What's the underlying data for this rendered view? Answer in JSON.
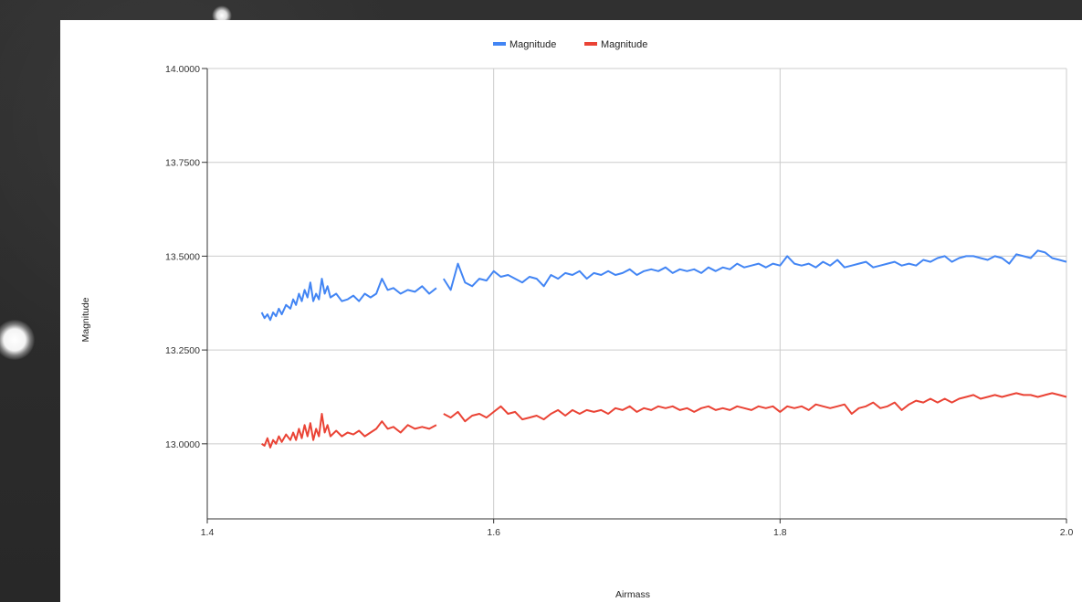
{
  "chart_data": {
    "type": "line",
    "title": "",
    "xlabel": "Airmass",
    "ylabel": "Magnitude",
    "xlim": [
      1.4,
      2.0
    ],
    "ylim": [
      12.8,
      14.0
    ],
    "x_ticks": [
      "1.4",
      "1.6",
      "1.8",
      "2.0"
    ],
    "y_ticks": [
      "14.0000",
      "13.7500",
      "13.5000",
      "13.2500",
      "13.0000"
    ],
    "grid": true,
    "legend_position": "top",
    "series": [
      {
        "name": "Magnitude",
        "color": "#4285f4",
        "segments": [
          [
            [
              1.438,
              13.35
            ],
            [
              1.44,
              13.335
            ],
            [
              1.442,
              13.345
            ],
            [
              1.444,
              13.33
            ],
            [
              1.446,
              13.35
            ],
            [
              1.448,
              13.34
            ],
            [
              1.45,
              13.36
            ],
            [
              1.452,
              13.345
            ],
            [
              1.455,
              13.37
            ],
            [
              1.458,
              13.36
            ],
            [
              1.46,
              13.385
            ],
            [
              1.462,
              13.37
            ],
            [
              1.464,
              13.4
            ],
            [
              1.466,
              13.38
            ],
            [
              1.468,
              13.41
            ],
            [
              1.47,
              13.39
            ],
            [
              1.472,
              13.43
            ],
            [
              1.474,
              13.38
            ],
            [
              1.476,
              13.4
            ],
            [
              1.478,
              13.385
            ],
            [
              1.48,
              13.44
            ],
            [
              1.482,
              13.4
            ],
            [
              1.484,
              13.42
            ],
            [
              1.486,
              13.39
            ],
            [
              1.49,
              13.4
            ],
            [
              1.494,
              13.38
            ],
            [
              1.498,
              13.385
            ],
            [
              1.502,
              13.395
            ],
            [
              1.506,
              13.38
            ],
            [
              1.51,
              13.4
            ],
            [
              1.514,
              13.39
            ],
            [
              1.518,
              13.4
            ],
            [
              1.522,
              13.44
            ],
            [
              1.526,
              13.41
            ],
            [
              1.53,
              13.415
            ],
            [
              1.535,
              13.4
            ],
            [
              1.54,
              13.41
            ],
            [
              1.545,
              13.405
            ],
            [
              1.55,
              13.42
            ],
            [
              1.555,
              13.4
            ],
            [
              1.56,
              13.415
            ]
          ],
          [
            [
              1.565,
              13.44
            ],
            [
              1.57,
              13.41
            ],
            [
              1.575,
              13.48
            ],
            [
              1.58,
              13.43
            ],
            [
              1.585,
              13.42
            ],
            [
              1.59,
              13.44
            ],
            [
              1.595,
              13.435
            ],
            [
              1.6,
              13.46
            ],
            [
              1.605,
              13.445
            ],
            [
              1.61,
              13.45
            ],
            [
              1.615,
              13.44
            ],
            [
              1.62,
              13.43
            ],
            [
              1.625,
              13.445
            ],
            [
              1.63,
              13.44
            ],
            [
              1.635,
              13.42
            ],
            [
              1.64,
              13.45
            ],
            [
              1.645,
              13.44
            ],
            [
              1.65,
              13.455
            ],
            [
              1.655,
              13.45
            ],
            [
              1.66,
              13.46
            ],
            [
              1.665,
              13.44
            ],
            [
              1.67,
              13.455
            ],
            [
              1.675,
              13.45
            ],
            [
              1.68,
              13.46
            ],
            [
              1.685,
              13.45
            ],
            [
              1.69,
              13.455
            ],
            [
              1.695,
              13.465
            ],
            [
              1.7,
              13.45
            ],
            [
              1.705,
              13.46
            ],
            [
              1.71,
              13.465
            ],
            [
              1.715,
              13.46
            ],
            [
              1.72,
              13.47
            ],
            [
              1.725,
              13.455
            ],
            [
              1.73,
              13.465
            ],
            [
              1.735,
              13.46
            ],
            [
              1.74,
              13.465
            ],
            [
              1.745,
              13.455
            ],
            [
              1.75,
              13.47
            ],
            [
              1.755,
              13.46
            ],
            [
              1.76,
              13.47
            ],
            [
              1.765,
              13.465
            ],
            [
              1.77,
              13.48
            ],
            [
              1.775,
              13.47
            ],
            [
              1.78,
              13.475
            ],
            [
              1.785,
              13.48
            ],
            [
              1.79,
              13.47
            ],
            [
              1.795,
              13.48
            ],
            [
              1.8,
              13.475
            ],
            [
              1.805,
              13.5
            ],
            [
              1.81,
              13.48
            ],
            [
              1.815,
              13.475
            ],
            [
              1.82,
              13.48
            ],
            [
              1.825,
              13.47
            ],
            [
              1.83,
              13.485
            ],
            [
              1.835,
              13.475
            ],
            [
              1.84,
              13.49
            ],
            [
              1.845,
              13.47
            ],
            [
              1.85,
              13.475
            ],
            [
              1.855,
              13.48
            ],
            [
              1.86,
              13.485
            ],
            [
              1.865,
              13.47
            ],
            [
              1.87,
              13.475
            ],
            [
              1.875,
              13.48
            ],
            [
              1.88,
              13.485
            ],
            [
              1.885,
              13.475
            ],
            [
              1.89,
              13.48
            ],
            [
              1.895,
              13.475
            ],
            [
              1.9,
              13.49
            ],
            [
              1.905,
              13.485
            ],
            [
              1.91,
              13.495
            ],
            [
              1.915,
              13.5
            ],
            [
              1.92,
              13.485
            ],
            [
              1.925,
              13.495
            ],
            [
              1.93,
              13.5
            ],
            [
              1.935,
              13.5
            ],
            [
              1.94,
              13.495
            ],
            [
              1.945,
              13.49
            ],
            [
              1.95,
              13.5
            ],
            [
              1.955,
              13.495
            ],
            [
              1.96,
              13.48
            ],
            [
              1.965,
              13.505
            ],
            [
              1.97,
              13.5
            ],
            [
              1.975,
              13.495
            ],
            [
              1.98,
              13.515
            ],
            [
              1.985,
              13.51
            ],
            [
              1.99,
              13.495
            ],
            [
              1.995,
              13.49
            ],
            [
              2.0,
              13.485
            ]
          ]
        ]
      },
      {
        "name": "Magnitude",
        "color": "#ea4335",
        "segments": [
          [
            [
              1.438,
              13.0
            ],
            [
              1.44,
              12.995
            ],
            [
              1.442,
              13.015
            ],
            [
              1.444,
              12.99
            ],
            [
              1.446,
              13.01
            ],
            [
              1.448,
              13.0
            ],
            [
              1.45,
              13.02
            ],
            [
              1.452,
              13.005
            ],
            [
              1.455,
              13.025
            ],
            [
              1.458,
              13.01
            ],
            [
              1.46,
              13.03
            ],
            [
              1.462,
              13.01
            ],
            [
              1.464,
              13.04
            ],
            [
              1.466,
              13.015
            ],
            [
              1.468,
              13.05
            ],
            [
              1.47,
              13.02
            ],
            [
              1.472,
              13.055
            ],
            [
              1.474,
              13.01
            ],
            [
              1.476,
              13.04
            ],
            [
              1.478,
              13.02
            ],
            [
              1.48,
              13.08
            ],
            [
              1.482,
              13.03
            ],
            [
              1.484,
              13.05
            ],
            [
              1.486,
              13.02
            ],
            [
              1.49,
              13.035
            ],
            [
              1.494,
              13.02
            ],
            [
              1.498,
              13.03
            ],
            [
              1.502,
              13.025
            ],
            [
              1.506,
              13.035
            ],
            [
              1.51,
              13.02
            ],
            [
              1.514,
              13.03
            ],
            [
              1.518,
              13.04
            ],
            [
              1.522,
              13.06
            ],
            [
              1.526,
              13.04
            ],
            [
              1.53,
              13.045
            ],
            [
              1.535,
              13.03
            ],
            [
              1.54,
              13.05
            ],
            [
              1.545,
              13.04
            ],
            [
              1.55,
              13.045
            ],
            [
              1.555,
              13.04
            ],
            [
              1.56,
              13.05
            ]
          ],
          [
            [
              1.565,
              13.08
            ],
            [
              1.57,
              13.07
            ],
            [
              1.575,
              13.085
            ],
            [
              1.58,
              13.06
            ],
            [
              1.585,
              13.075
            ],
            [
              1.59,
              13.08
            ],
            [
              1.595,
              13.07
            ],
            [
              1.6,
              13.085
            ],
            [
              1.605,
              13.1
            ],
            [
              1.61,
              13.08
            ],
            [
              1.615,
              13.085
            ],
            [
              1.62,
              13.065
            ],
            [
              1.625,
              13.07
            ],
            [
              1.63,
              13.075
            ],
            [
              1.635,
              13.065
            ],
            [
              1.64,
              13.08
            ],
            [
              1.645,
              13.09
            ],
            [
              1.65,
              13.075
            ],
            [
              1.655,
              13.09
            ],
            [
              1.66,
              13.08
            ],
            [
              1.665,
              13.09
            ],
            [
              1.67,
              13.085
            ],
            [
              1.675,
              13.09
            ],
            [
              1.68,
              13.08
            ],
            [
              1.685,
              13.095
            ],
            [
              1.69,
              13.09
            ],
            [
              1.695,
              13.1
            ],
            [
              1.7,
              13.085
            ],
            [
              1.705,
              13.095
            ],
            [
              1.71,
              13.09
            ],
            [
              1.715,
              13.1
            ],
            [
              1.72,
              13.095
            ],
            [
              1.725,
              13.1
            ],
            [
              1.73,
              13.09
            ],
            [
              1.735,
              13.095
            ],
            [
              1.74,
              13.085
            ],
            [
              1.745,
              13.095
            ],
            [
              1.75,
              13.1
            ],
            [
              1.755,
              13.09
            ],
            [
              1.76,
              13.095
            ],
            [
              1.765,
              13.09
            ],
            [
              1.77,
              13.1
            ],
            [
              1.775,
              13.095
            ],
            [
              1.78,
              13.09
            ],
            [
              1.785,
              13.1
            ],
            [
              1.79,
              13.095
            ],
            [
              1.795,
              13.1
            ],
            [
              1.8,
              13.085
            ],
            [
              1.805,
              13.1
            ],
            [
              1.81,
              13.095
            ],
            [
              1.815,
              13.1
            ],
            [
              1.82,
              13.09
            ],
            [
              1.825,
              13.105
            ],
            [
              1.83,
              13.1
            ],
            [
              1.835,
              13.095
            ],
            [
              1.84,
              13.1
            ],
            [
              1.845,
              13.105
            ],
            [
              1.85,
              13.08
            ],
            [
              1.855,
              13.095
            ],
            [
              1.86,
              13.1
            ],
            [
              1.865,
              13.11
            ],
            [
              1.87,
              13.095
            ],
            [
              1.875,
              13.1
            ],
            [
              1.88,
              13.11
            ],
            [
              1.885,
              13.09
            ],
            [
              1.89,
              13.105
            ],
            [
              1.895,
              13.115
            ],
            [
              1.9,
              13.11
            ],
            [
              1.905,
              13.12
            ],
            [
              1.91,
              13.11
            ],
            [
              1.915,
              13.12
            ],
            [
              1.92,
              13.11
            ],
            [
              1.925,
              13.12
            ],
            [
              1.93,
              13.125
            ],
            [
              1.935,
              13.13
            ],
            [
              1.94,
              13.12
            ],
            [
              1.945,
              13.125
            ],
            [
              1.95,
              13.13
            ],
            [
              1.955,
              13.125
            ],
            [
              1.96,
              13.13
            ],
            [
              1.965,
              13.135
            ],
            [
              1.97,
              13.13
            ],
            [
              1.975,
              13.13
            ],
            [
              1.98,
              13.125
            ],
            [
              1.985,
              13.13
            ],
            [
              1.99,
              13.135
            ],
            [
              1.995,
              13.13
            ],
            [
              2.0,
              13.125
            ]
          ]
        ]
      }
    ]
  }
}
